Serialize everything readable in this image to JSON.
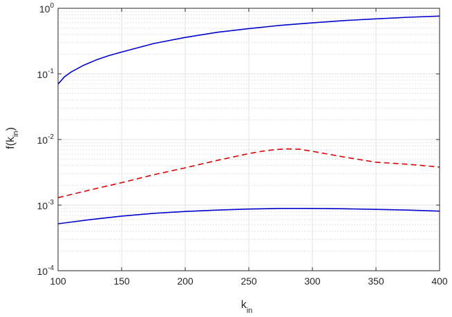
{
  "chart_data": {
    "type": "line",
    "title": "",
    "xlabel": {
      "base": "k",
      "subscript": "in"
    },
    "ylabel": {
      "prefix": "f(k",
      "subscript": "in",
      "suffix": ")"
    },
    "xlim": [
      100,
      400
    ],
    "ylim": [
      0.0001,
      1
    ],
    "yscale": "log",
    "grid": true,
    "minor_grid": true,
    "xticks": [
      100,
      150,
      200,
      250,
      300,
      350,
      400
    ],
    "xtick_labels": [
      "100",
      "150",
      "200",
      "250",
      "300",
      "350",
      "400"
    ],
    "yticks": [
      {
        "value": 0.0001,
        "base": "10",
        "exp": "-4"
      },
      {
        "value": 0.001,
        "base": "10",
        "exp": "-3"
      },
      {
        "value": 0.01,
        "base": "10",
        "exp": "-2"
      },
      {
        "value": 0.1,
        "base": "10",
        "exp": "-1"
      },
      {
        "value": 1,
        "base": "10",
        "exp": "0"
      }
    ],
    "series": [
      {
        "color": "#0000cc",
        "dash": "solid",
        "x": [
          100,
          105,
          110,
          120,
          130,
          140,
          150,
          175,
          200,
          225,
          250,
          275,
          300,
          325,
          350,
          375,
          400
        ],
        "y": [
          0.07,
          0.09,
          0.106,
          0.135,
          0.163,
          0.19,
          0.215,
          0.29,
          0.36,
          0.43,
          0.49,
          0.55,
          0.6,
          0.65,
          0.69,
          0.73,
          0.76
        ]
      },
      {
        "color": "#dd0000",
        "dash": "dashed",
        "x": [
          100,
          125,
          150,
          175,
          200,
          225,
          250,
          260,
          270,
          280,
          290,
          300,
          325,
          350,
          375,
          400
        ],
        "y": [
          0.0013,
          0.0017,
          0.0022,
          0.0029,
          0.0037,
          0.0048,
          0.0061,
          0.0066,
          0.007,
          0.0072,
          0.0071,
          0.0066,
          0.0054,
          0.0045,
          0.0042,
          0.0038
        ]
      },
      {
        "color": "#0000cc",
        "dash": "solid",
        "x": [
          100,
          125,
          150,
          175,
          200,
          225,
          250,
          275,
          300,
          325,
          350,
          375,
          400
        ],
        "y": [
          0.00052,
          0.0006,
          0.00068,
          0.00075,
          0.0008,
          0.00084,
          0.00087,
          0.00089,
          0.00089,
          0.00088,
          0.00086,
          0.00084,
          0.00081
        ]
      }
    ]
  }
}
